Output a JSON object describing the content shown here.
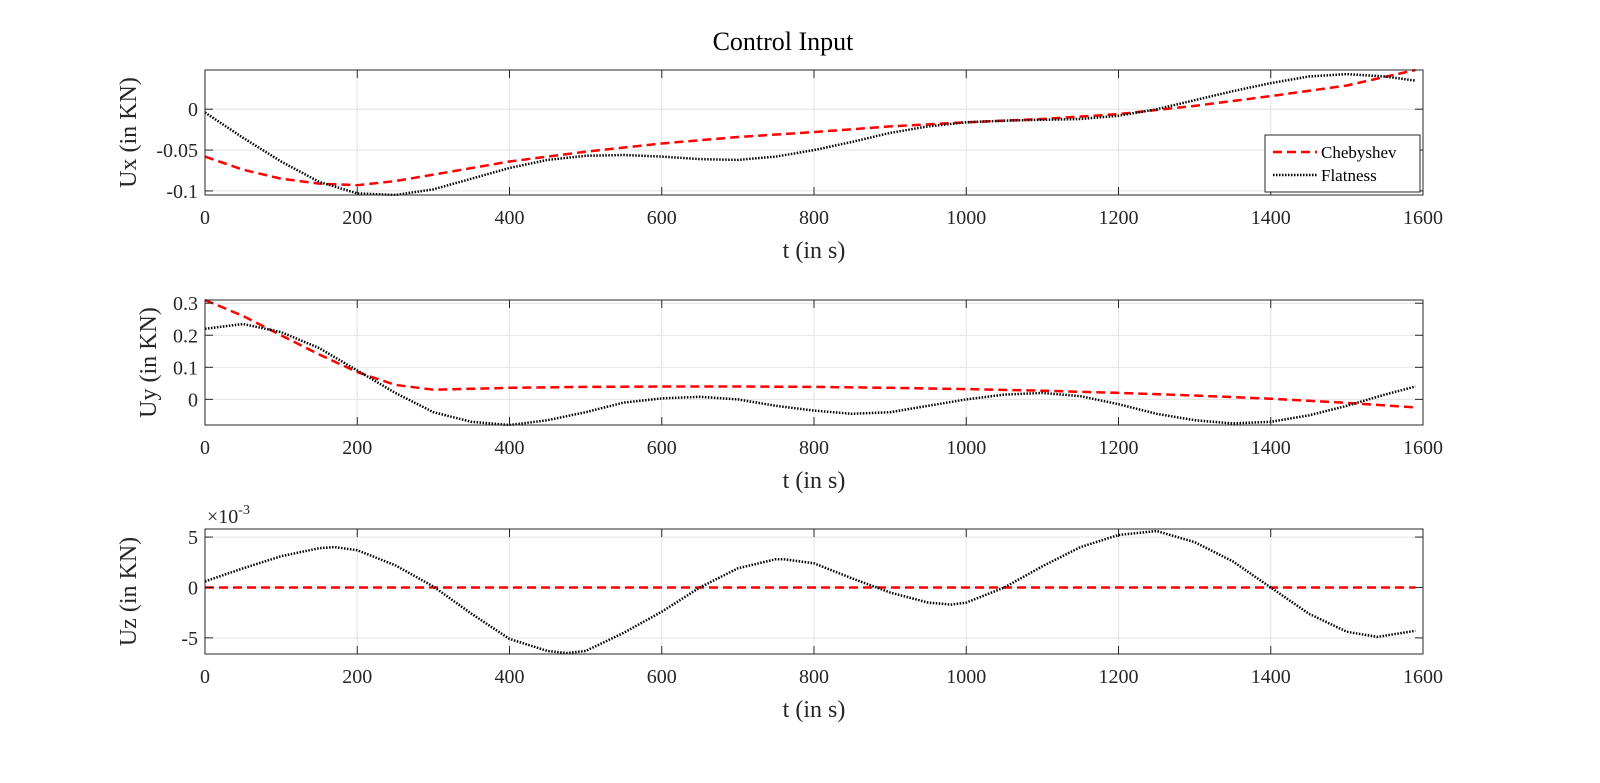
{
  "figure": {
    "title": "Control Input"
  },
  "chart_data": [
    {
      "type": "line",
      "title": "Control Input",
      "xlabel": "t (in s)",
      "ylabel": "Ux (in KN)",
      "xlim": [
        0,
        1600
      ],
      "ylim": [
        -0.105,
        0.048
      ],
      "xticks": [
        0,
        200,
        400,
        600,
        800,
        1000,
        1200,
        1400,
        1600
      ],
      "yticks": [
        -0.1,
        -0.05,
        0
      ],
      "ytick_labels": [
        "-0.1",
        "-0.05",
        "0"
      ],
      "grid": true,
      "legend": {
        "placement": "bottom-right",
        "entries": [
          "Chebyshev",
          "Flatness"
        ]
      },
      "series": [
        {
          "name": "Chebyshev",
          "style": "dashed",
          "color": "#ff0000",
          "x": [
            0,
            50,
            100,
            150,
            200,
            250,
            300,
            400,
            500,
            600,
            700,
            800,
            900,
            1000,
            1100,
            1200,
            1300,
            1400,
            1500,
            1590
          ],
          "y": [
            -0.058,
            -0.074,
            -0.085,
            -0.091,
            -0.093,
            -0.088,
            -0.08,
            -0.064,
            -0.052,
            -0.042,
            -0.034,
            -0.028,
            -0.021,
            -0.016,
            -0.012,
            -0.006,
            0.004,
            0.016,
            0.029,
            0.048
          ]
        },
        {
          "name": "Flatness",
          "style": "dotted",
          "color": "#000000",
          "x": [
            0,
            50,
            100,
            150,
            200,
            250,
            300,
            350,
            400,
            450,
            500,
            550,
            600,
            650,
            700,
            750,
            800,
            850,
            900,
            950,
            1000,
            1050,
            1100,
            1150,
            1200,
            1250,
            1300,
            1350,
            1400,
            1450,
            1500,
            1550,
            1590
          ],
          "y": [
            -0.004,
            -0.035,
            -0.064,
            -0.089,
            -0.103,
            -0.105,
            -0.098,
            -0.085,
            -0.072,
            -0.062,
            -0.057,
            -0.056,
            -0.058,
            -0.061,
            -0.062,
            -0.058,
            -0.05,
            -0.04,
            -0.029,
            -0.021,
            -0.016,
            -0.014,
            -0.013,
            -0.012,
            -0.008,
            0.0,
            0.011,
            0.022,
            0.032,
            0.04,
            0.043,
            0.04,
            0.035
          ]
        }
      ]
    },
    {
      "type": "line",
      "xlabel": "t (in s)",
      "ylabel": "Uy (in KN)",
      "xlim": [
        0,
        1600
      ],
      "ylim": [
        -0.08,
        0.31
      ],
      "xticks": [
        0,
        200,
        400,
        600,
        800,
        1000,
        1200,
        1400,
        1600
      ],
      "yticks": [
        0,
        0.1,
        0.2,
        0.3
      ],
      "ytick_labels": [
        "0",
        "0.1",
        "0.2",
        "0.3"
      ],
      "grid": true,
      "series": [
        {
          "name": "Chebyshev",
          "style": "dashed",
          "color": "#ff0000",
          "x": [
            0,
            50,
            100,
            150,
            200,
            250,
            300,
            350,
            400,
            500,
            600,
            700,
            800,
            900,
            1000,
            1100,
            1200,
            1300,
            1400,
            1500,
            1590
          ],
          "y": [
            0.31,
            0.26,
            0.2,
            0.14,
            0.085,
            0.045,
            0.03,
            0.033,
            0.036,
            0.039,
            0.04,
            0.04,
            0.039,
            0.036,
            0.032,
            0.027,
            0.02,
            0.012,
            0.002,
            -0.011,
            -0.025
          ]
        },
        {
          "name": "Flatness",
          "style": "dotted",
          "color": "#000000",
          "x": [
            0,
            50,
            100,
            150,
            200,
            250,
            300,
            350,
            400,
            450,
            500,
            550,
            600,
            650,
            700,
            750,
            800,
            850,
            900,
            950,
            1000,
            1050,
            1100,
            1150,
            1200,
            1250,
            1300,
            1350,
            1400,
            1450,
            1500,
            1550,
            1590
          ],
          "y": [
            0.22,
            0.235,
            0.21,
            0.16,
            0.09,
            0.02,
            -0.04,
            -0.07,
            -0.08,
            -0.065,
            -0.04,
            -0.01,
            0.003,
            0.008,
            0.0,
            -0.02,
            -0.035,
            -0.045,
            -0.04,
            -0.02,
            0.0,
            0.015,
            0.02,
            0.01,
            -0.015,
            -0.045,
            -0.065,
            -0.075,
            -0.07,
            -0.05,
            -0.02,
            0.015,
            0.04
          ]
        }
      ]
    },
    {
      "type": "line",
      "xlabel": "t (in s)",
      "ylabel": "Uz (in KN)",
      "exponent_label": {
        "base": "×10",
        "power": "-3"
      },
      "xlim": [
        0,
        1600
      ],
      "ylim": [
        -6.6,
        5.8
      ],
      "xticks": [
        0,
        200,
        400,
        600,
        800,
        1000,
        1200,
        1400,
        1600
      ],
      "yticks": [
        -5,
        0,
        5
      ],
      "ytick_labels": [
        "-5",
        "0",
        "5"
      ],
      "grid": true,
      "series": [
        {
          "name": "Chebyshev",
          "style": "dashed",
          "color": "#ff0000",
          "x": [
            0,
            1590
          ],
          "y": [
            0,
            0
          ]
        },
        {
          "name": "Flatness",
          "style": "dotted",
          "color": "#000000",
          "x": [
            0,
            50,
            100,
            150,
            170,
            200,
            250,
            300,
            350,
            400,
            450,
            475,
            500,
            550,
            600,
            650,
            700,
            750,
            760,
            800,
            850,
            900,
            950,
            980,
            1000,
            1050,
            1100,
            1150,
            1200,
            1250,
            1300,
            1350,
            1400,
            1450,
            1500,
            1540,
            1590
          ],
          "y": [
            0.6,
            1.9,
            3.1,
            3.9,
            4.0,
            3.7,
            2.2,
            0.1,
            -2.6,
            -5.1,
            -6.3,
            -6.5,
            -6.3,
            -4.5,
            -2.4,
            0.0,
            1.9,
            2.8,
            2.8,
            2.4,
            0.9,
            -0.5,
            -1.5,
            -1.7,
            -1.5,
            0.0,
            2.1,
            4.0,
            5.2,
            5.6,
            4.5,
            2.6,
            0.0,
            -2.6,
            -4.4,
            -4.9,
            -4.3
          ]
        }
      ]
    }
  ]
}
